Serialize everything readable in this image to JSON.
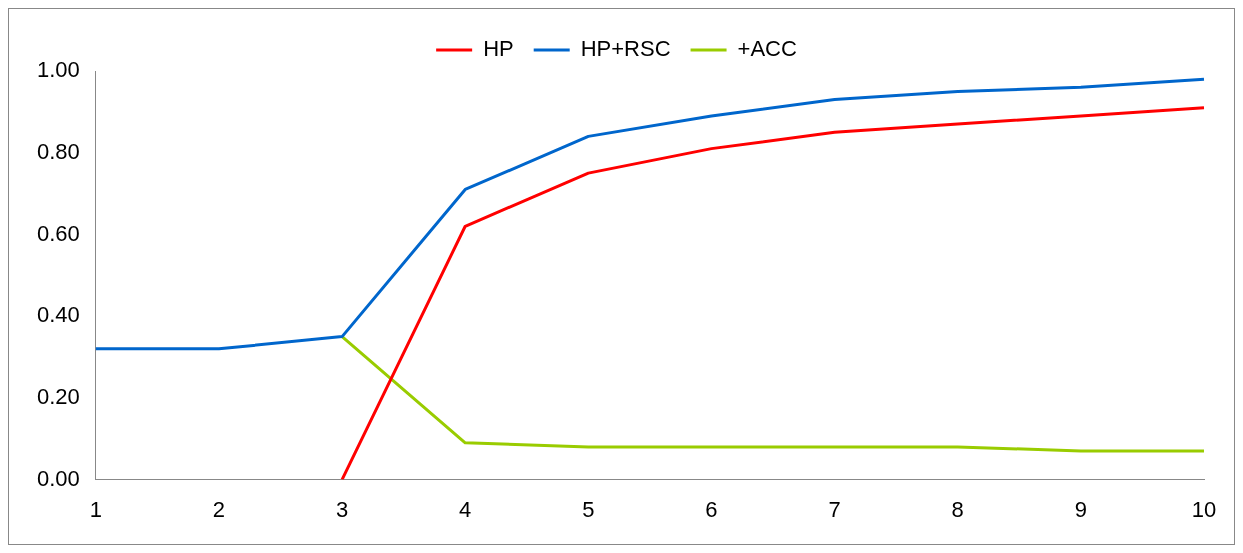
{
  "chart_data": {
    "type": "line",
    "categories": [
      "1",
      "2",
      "3",
      "4",
      "5",
      "6",
      "7",
      "8",
      "9",
      "10"
    ],
    "series": [
      {
        "name": "HP",
        "color": "#ff0000",
        "values": [
          null,
          null,
          0,
          0.62,
          0.75,
          0.81,
          0.85,
          0.87,
          0.89,
          0.91
        ]
      },
      {
        "name": "HP+RSC",
        "color": "#0066cc",
        "values": [
          0.32,
          0.32,
          0.35,
          0.71,
          0.84,
          0.89,
          0.93,
          0.95,
          0.96,
          0.98
        ]
      },
      {
        "name": "+ACC",
        "color": "#99cc00",
        "values": [
          null,
          null,
          0.35,
          0.09,
          0.08,
          0.08,
          0.08,
          0.08,
          0.07,
          0.07
        ]
      }
    ],
    "ylim": [
      0,
      1
    ],
    "yticks": [
      {
        "value": 0,
        "label": "0.00"
      },
      {
        "value": 0.2,
        "label": "0.20"
      },
      {
        "value": 0.4,
        "label": "0.40"
      },
      {
        "value": 0.6,
        "label": "0.60"
      },
      {
        "value": 0.8,
        "label": "0.80"
      },
      {
        "value": 1,
        "label": "1.00"
      }
    ],
    "grid": false,
    "legend": "top",
    "marker": "none",
    "line_style": "solid"
  }
}
